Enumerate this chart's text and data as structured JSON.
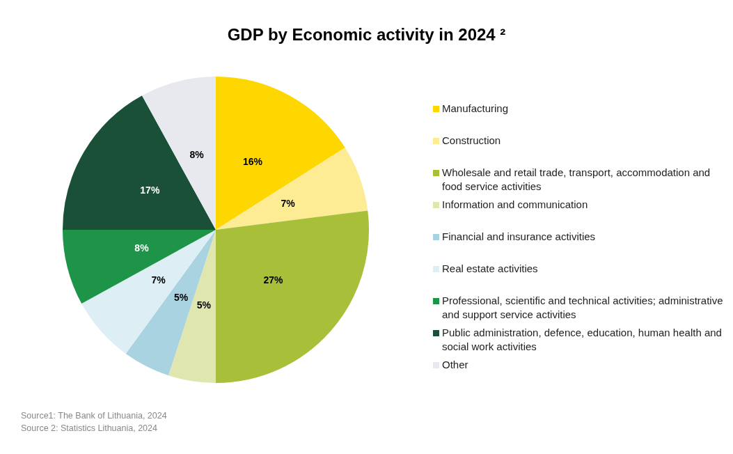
{
  "chart_data": {
    "type": "pie",
    "title": "GDP by Economic activity in 2024 ²",
    "categories": [
      "Manufacturing",
      "Construction",
      "Wholesale and retail trade, transport, accommodation and food service activities",
      "Information and communication",
      "Financial and insurance activities",
      "Real estate activities",
      "Professional, scientific and technical activities; administrative and support service activities",
      "Public administration, defence, education, human health and social work activities",
      "Other"
    ],
    "values": [
      16,
      7,
      27,
      5,
      5,
      7,
      8,
      17,
      8
    ],
    "value_labels": [
      "16%",
      "7%",
      "27%",
      "5%",
      "5%",
      "7%",
      "8%",
      "17%",
      "8%"
    ],
    "colors": [
      "#ffd700",
      "#fdec94",
      "#a8bf3a",
      "#dfe6b0",
      "#a9d3e0",
      "#ddeef5",
      "#1e9448",
      "#1a5038",
      "#e8e9ee"
    ],
    "legend": "right",
    "annotations": [
      "Source1: The Bank of Lithuania, 2024",
      "Source 2: Statistics Lithuania, 2024"
    ]
  }
}
